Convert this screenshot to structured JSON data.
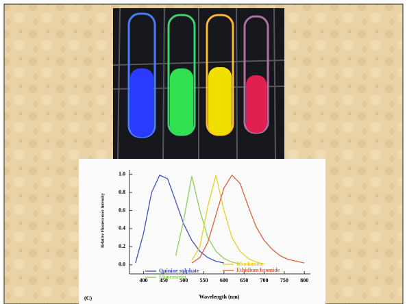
{
  "chart_data": {
    "type": "line",
    "label": "(C)",
    "x_label": "Wavelength (nm)",
    "y_label": "Relative Fluorescence Intensity",
    "x": [
      380,
      400,
      420,
      440,
      460,
      480,
      500,
      520,
      540,
      560,
      580,
      600,
      620,
      640,
      660,
      680,
      700,
      720,
      740,
      760,
      780,
      800
    ],
    "series": [
      {
        "name": "Quinine sulphate",
        "color": "#3a4fc0",
        "values": [
          0.02,
          0.35,
          0.8,
          0.99,
          0.95,
          0.7,
          0.45,
          0.27,
          0.15,
          0.08,
          0.04,
          0.02,
          null,
          null,
          null,
          null,
          null,
          null,
          null,
          null,
          null,
          null
        ]
      },
      {
        "name": "Fluorescein",
        "color": "#8ccf5a",
        "values": [
          null,
          null,
          null,
          null,
          null,
          0.1,
          0.5,
          0.98,
          0.6,
          0.3,
          0.15,
          0.07,
          0.03,
          0.01,
          null,
          null,
          null,
          null,
          null,
          null,
          null,
          null
        ]
      },
      {
        "name": "Rhodamine",
        "color": "#e8d020",
        "values": [
          null,
          null,
          null,
          null,
          null,
          null,
          null,
          0.05,
          0.2,
          0.65,
          0.99,
          0.6,
          0.3,
          0.15,
          0.07,
          0.03,
          0.01,
          null,
          null,
          null,
          null,
          null
        ]
      },
      {
        "name": "Ethidium bromide",
        "color": "#e0603a",
        "values": [
          null,
          null,
          null,
          null,
          null,
          null,
          null,
          0.02,
          0.08,
          0.25,
          0.55,
          0.85,
          0.99,
          0.9,
          0.65,
          0.42,
          0.27,
          0.17,
          0.1,
          0.06,
          0.04,
          0.02
        ]
      }
    ],
    "xlim": [
      365,
      815
    ],
    "ylim": [
      -0.1,
      1.05
    ],
    "xticks": [
      400,
      450,
      500,
      550,
      600,
      650,
      700,
      750,
      800
    ],
    "yticks": [
      {
        "value": 0,
        "label": "0.0"
      },
      {
        "value": 0.2,
        "label": "0.2"
      },
      {
        "value": 0.4,
        "label": "0.4"
      },
      {
        "value": 0.6,
        "label": "0.6"
      },
      {
        "value": 0.8,
        "label": "0.8"
      },
      {
        "value": 1,
        "label": "1.0"
      }
    ]
  }
}
